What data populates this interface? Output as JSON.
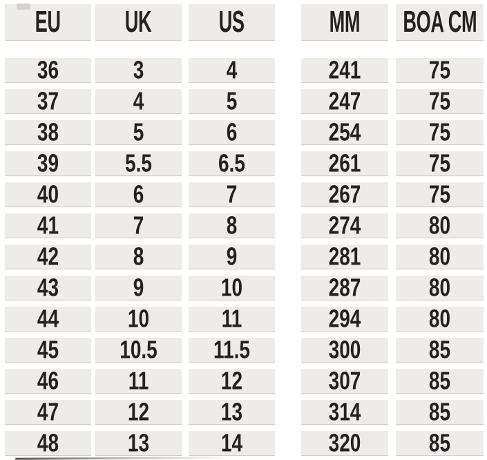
{
  "chart_data": {
    "type": "table",
    "columns": [
      "EU",
      "UK",
      "US",
      "MM",
      "BOA CM"
    ],
    "rows": [
      [
        "36",
        "3",
        "4",
        "241",
        "75"
      ],
      [
        "37",
        "4",
        "5",
        "247",
        "75"
      ],
      [
        "38",
        "5",
        "6",
        "254",
        "75"
      ],
      [
        "39",
        "5.5",
        "6.5",
        "261",
        "75"
      ],
      [
        "40",
        "6",
        "7",
        "267",
        "75"
      ],
      [
        "41",
        "7",
        "8",
        "274",
        "80"
      ],
      [
        "42",
        "8",
        "9",
        "281",
        "80"
      ],
      [
        "43",
        "9",
        "10",
        "287",
        "80"
      ],
      [
        "44",
        "10",
        "11",
        "294",
        "80"
      ],
      [
        "45",
        "10.5",
        "11.5",
        "300",
        "85"
      ],
      [
        "46",
        "11",
        "12",
        "307",
        "85"
      ],
      [
        "47",
        "12",
        "13",
        "314",
        "85"
      ],
      [
        "48",
        "13",
        "14",
        "320",
        "85"
      ]
    ],
    "layout_hint": "two column groups: shoe sizes (EU/UK/US) and foot measurements (MM/BOA CM); wide gap between groups; legend off; grid off"
  },
  "colors": {
    "page_bg": "#FFFFFF",
    "cell_bg": "#EDECE9",
    "cell_edge": "#D0CECB",
    "text": "#242122"
  },
  "column_keys": [
    "eu",
    "uk",
    "us",
    "mm",
    "boa-cm"
  ]
}
